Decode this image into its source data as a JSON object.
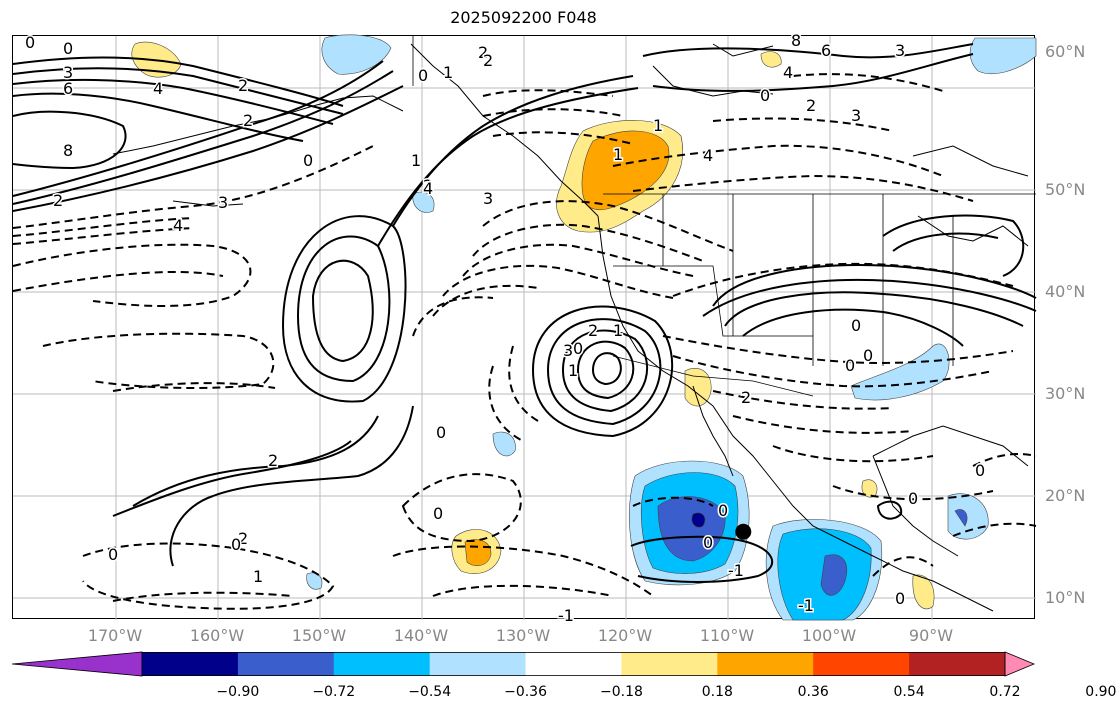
{
  "title": "2025092200 F048",
  "lat_labels": [
    "60°N",
    "50°N",
    "40°N",
    "30°N",
    "20°N",
    "10°N"
  ],
  "lon_labels": [
    "170°W",
    "160°W",
    "150°W",
    "140°W",
    "130°W",
    "120°W",
    "110°W",
    "100°W",
    "90°W"
  ],
  "colorbar": {
    "ticks": [
      "−0.90",
      "−0.72",
      "−0.54",
      "−0.36",
      "−0.18",
      "0.18",
      "0.36",
      "0.54",
      "0.72",
      "0.90"
    ],
    "colors": [
      "#9932cc",
      "#00008b",
      "#3a5fcd",
      "#00bfff",
      "#b0e2ff",
      "#ffffff",
      "#ffeb8a",
      "#ffa500",
      "#ff4500",
      "#b22222",
      "#ff8ab4"
    ]
  },
  "contour_labels": [
    {
      "text": "0"
    },
    {
      "text": "0"
    },
    {
      "text": "3"
    },
    {
      "text": "6"
    },
    {
      "text": "8"
    },
    {
      "text": "2"
    },
    {
      "text": "4"
    },
    {
      "text": "2"
    },
    {
      "text": "0"
    },
    {
      "text": "2"
    },
    {
      "text": "3"
    },
    {
      "text": "4"
    },
    {
      "text": "2"
    },
    {
      "text": "0"
    },
    {
      "text": "1"
    },
    {
      "text": "2"
    },
    {
      "text": "8"
    },
    {
      "text": "6"
    },
    {
      "text": "4"
    },
    {
      "text": "3"
    },
    {
      "text": "0"
    },
    {
      "text": "2"
    },
    {
      "text": "3"
    },
    {
      "text": "4"
    },
    {
      "text": "2"
    },
    {
      "text": "1"
    },
    {
      "text": "4"
    },
    {
      "text": "3"
    },
    {
      "text": "1"
    },
    {
      "text": "2"
    },
    {
      "text": "0"
    },
    {
      "text": "1"
    },
    {
      "text": "3"
    },
    {
      "text": "2"
    },
    {
      "text": "0"
    },
    {
      "text": "0"
    },
    {
      "text": "2"
    },
    {
      "text": "0"
    },
    {
      "text": "0"
    },
    {
      "text": "1"
    },
    {
      "text": "0"
    },
    {
      "text": "0"
    },
    {
      "text": "-1"
    },
    {
      "text": "-1"
    },
    {
      "text": "0"
    },
    {
      "text": "0"
    },
    {
      "text": "-1"
    },
    {
      "text": "2"
    },
    {
      "text": "0"
    },
    {
      "text": "0"
    },
    {
      "text": "0"
    },
    {
      "text": "1"
    },
    {
      "text": "1"
    },
    {
      "text": "0"
    }
  ],
  "markers": [
    {
      "name": "storm-center",
      "lat": 16.5,
      "lon": -108.5
    }
  ]
}
